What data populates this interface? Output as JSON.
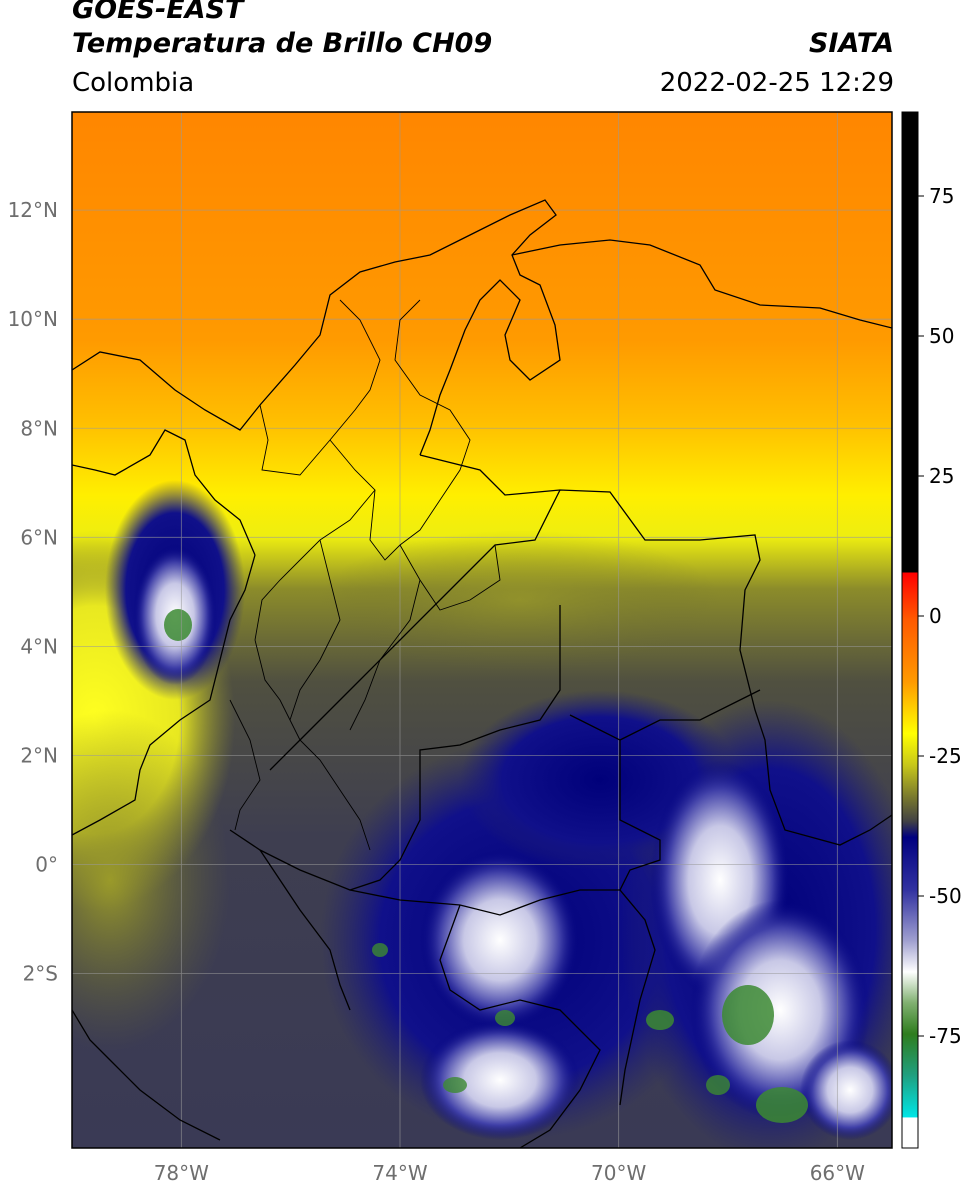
{
  "header": {
    "satellite": "GOES-EAST",
    "product": "Temperatura de Brillo CH09",
    "brand": "SIATA",
    "region": "Colombia",
    "datetime": "2022-02-25 12:29"
  },
  "map": {
    "lon_range": [
      -80,
      -65
    ],
    "lat_range": [
      -5.2,
      13.8
    ],
    "gridlines": true,
    "lat_ticks": [
      {
        "value": 12,
        "label": "12°N"
      },
      {
        "value": 10,
        "label": "10°N"
      },
      {
        "value": 8,
        "label": "8°N"
      },
      {
        "value": 6,
        "label": "6°N"
      },
      {
        "value": 4,
        "label": "4°N"
      },
      {
        "value": 2,
        "label": "2°N"
      },
      {
        "value": 0,
        "label": "0°"
      },
      {
        "value": -2,
        "label": "2°S"
      }
    ],
    "lon_ticks": [
      {
        "value": -78,
        "label": "78°W"
      },
      {
        "value": -74,
        "label": "74°W"
      },
      {
        "value": -70,
        "label": "70°W"
      },
      {
        "value": -66,
        "label": "66°W"
      }
    ]
  },
  "colorbar": {
    "range": [
      -95,
      90
    ],
    "ticks": [
      {
        "value": 75,
        "label": "75"
      },
      {
        "value": 50,
        "label": "50"
      },
      {
        "value": 25,
        "label": "25"
      },
      {
        "value": 0,
        "label": "0"
      },
      {
        "value": -25,
        "label": "-25"
      },
      {
        "value": -50,
        "label": "-50"
      },
      {
        "value": -75,
        "label": "-75"
      }
    ],
    "colors": {
      "black": "#000000",
      "red": "#ff0000",
      "orange": "#ff8a00",
      "yellow": "#ffff00",
      "olive": "#8a8a1c",
      "gray": "#3f3f4a",
      "navy": "#000080",
      "white": "#ffffff",
      "green": "#2e7d1e",
      "cyan": "#00e5e5"
    }
  }
}
